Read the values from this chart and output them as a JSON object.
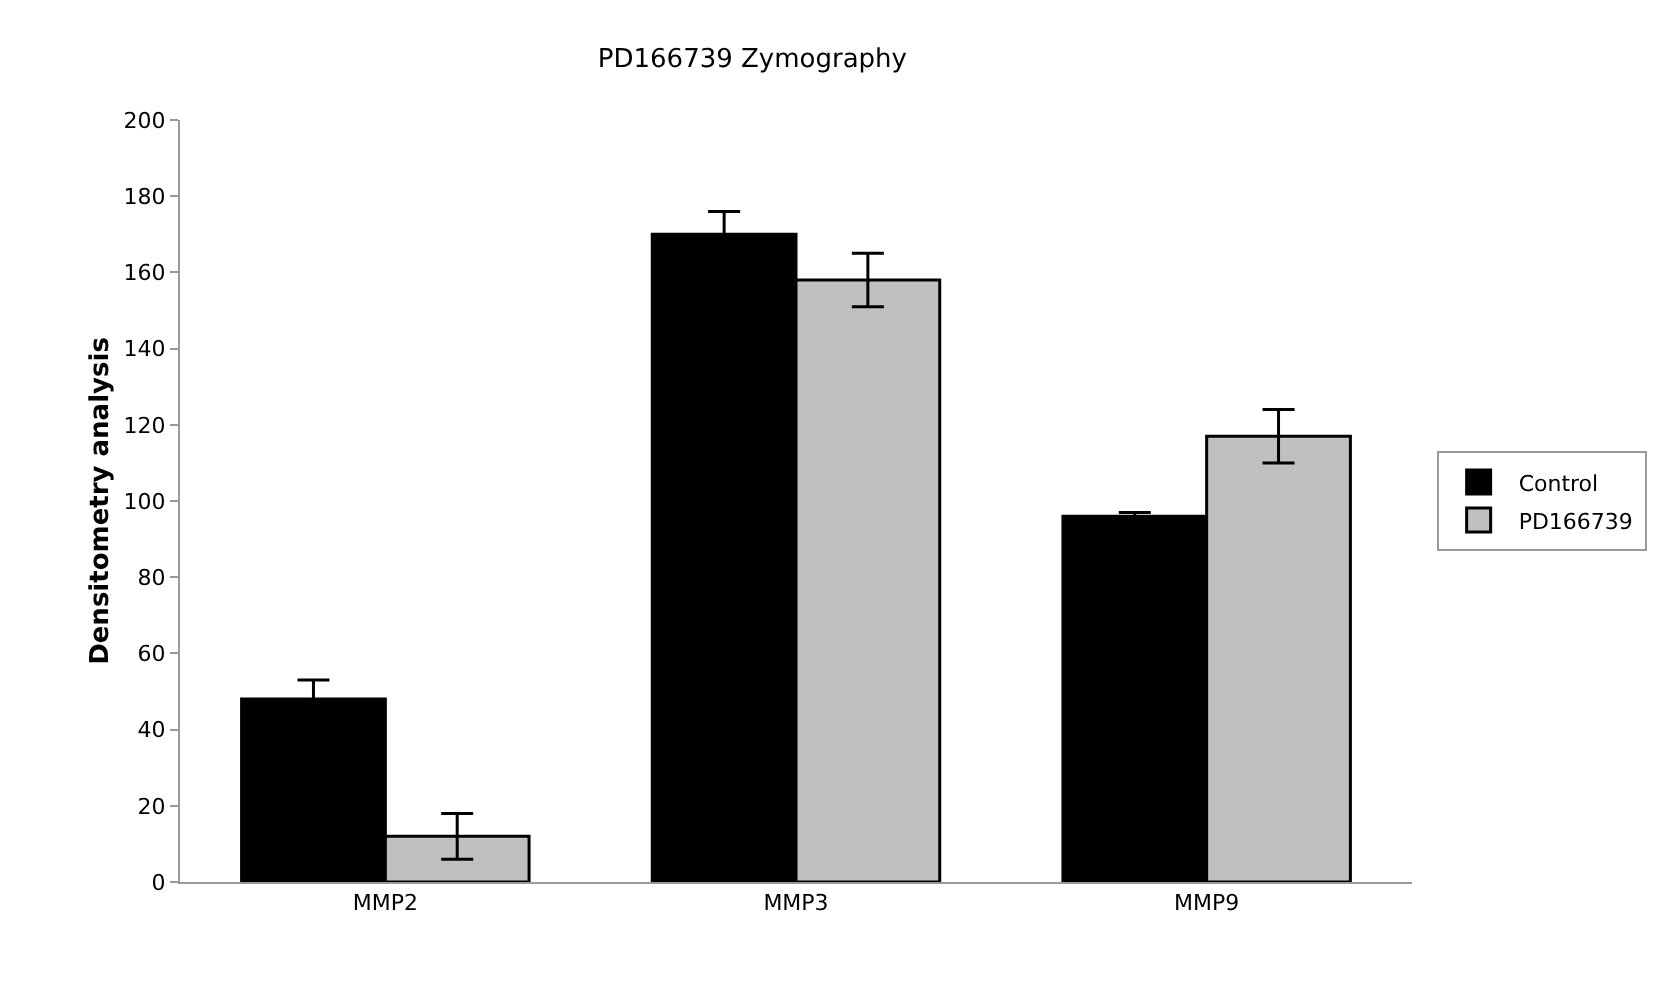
{
  "chart_data": {
    "type": "bar",
    "title": "PD166739 Zymography",
    "ylabel": "Densitometry analysis",
    "categories": [
      "MMP2",
      "MMP3",
      "MMP9"
    ],
    "series": [
      {
        "name": "Control",
        "color": "#000000",
        "values": [
          48,
          170,
          96
        ],
        "errors": [
          5,
          6,
          1
        ]
      },
      {
        "name": "PD166739",
        "color": "#c0c0c0",
        "values": [
          12,
          158,
          117
        ],
        "errors": [
          6,
          7,
          7
        ]
      }
    ],
    "ylim": [
      0,
      200
    ],
    "yticks": [
      0,
      20,
      40,
      60,
      80,
      100,
      120,
      140,
      160,
      180,
      200
    ],
    "grid": false,
    "legend": "right"
  }
}
